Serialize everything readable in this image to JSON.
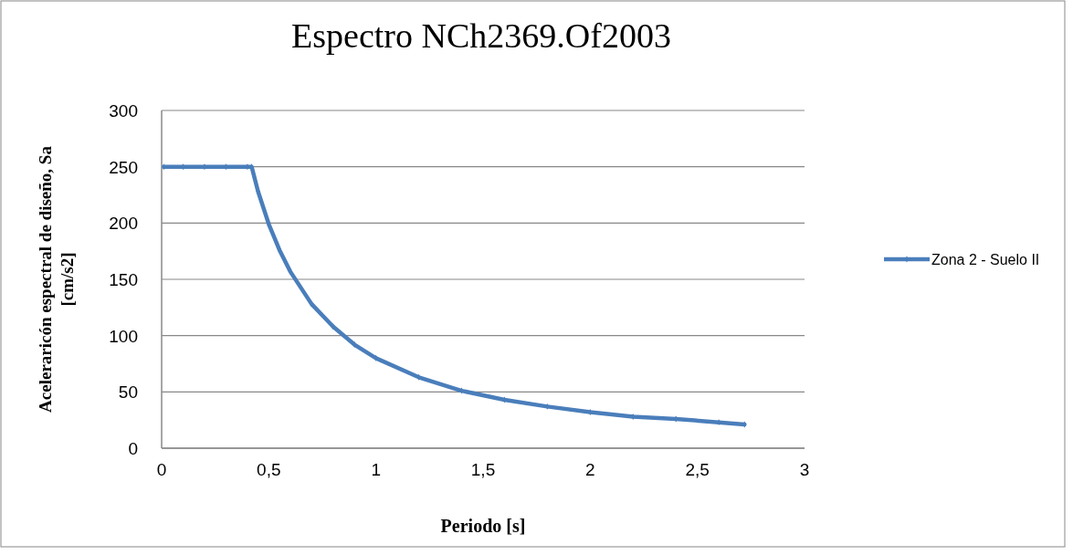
{
  "chart_data": {
    "type": "line",
    "title": "Espectro NCh2369.Of2003",
    "xlabel": "Periodo [s]",
    "ylabel": "Aceleraricón espectral de diseño, Sa [cm/s2]",
    "xlim": [
      0,
      3
    ],
    "xticks": [
      0,
      {
        "value": 0.5,
        "label": "0,5"
      },
      1,
      {
        "value": 1.5,
        "label": "1,5"
      },
      2,
      {
        "value": 2.5,
        "label": "2,5"
      },
      3
    ],
    "ylim": [
      0,
      300
    ],
    "yticks": [
      0,
      50,
      100,
      150,
      200,
      250,
      300
    ],
    "grid": "y",
    "legend": "right",
    "marker": "diamond",
    "line_style": "solid",
    "series": [
      {
        "name": "Zona 2 - Suelo II",
        "color": "#4a7ebb",
        "x": [
          0.01,
          0.1,
          0.2,
          0.3,
          0.4,
          0.42,
          0.45,
          0.5,
          0.55,
          0.6,
          0.7,
          0.8,
          0.9,
          1.0,
          1.2,
          1.4,
          1.6,
          1.8,
          2.0,
          2.2,
          2.4,
          2.6,
          2.72
        ],
        "values": [
          250,
          250,
          250,
          250,
          250,
          250,
          228,
          199,
          176,
          157,
          128,
          108,
          92,
          80,
          63,
          51,
          43,
          37,
          32,
          28,
          26,
          23,
          21
        ]
      }
    ]
  }
}
